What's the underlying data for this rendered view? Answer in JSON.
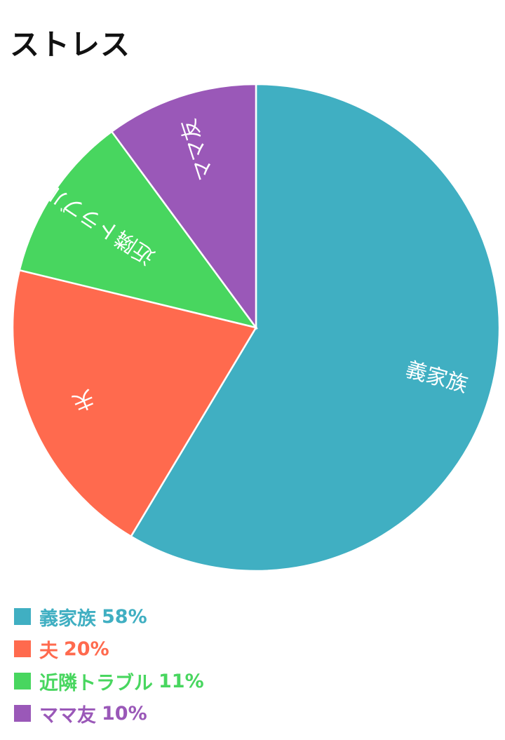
{
  "title": "ストレス",
  "chart_data": {
    "type": "pie",
    "title": "ストレス",
    "categories": [
      "義家族",
      "夫",
      "近隣トラブル",
      "ママ友"
    ],
    "values": [
      58,
      20,
      11,
      10
    ],
    "value_labels": [
      "58%",
      "20%",
      "11%",
      "10%"
    ],
    "colors": [
      "#40AFC2",
      "#FF6A4E",
      "#48D65F",
      "#9A58B8"
    ],
    "legend_position": "bottom-left",
    "slice_labels": "inside, rotated along radius"
  }
}
